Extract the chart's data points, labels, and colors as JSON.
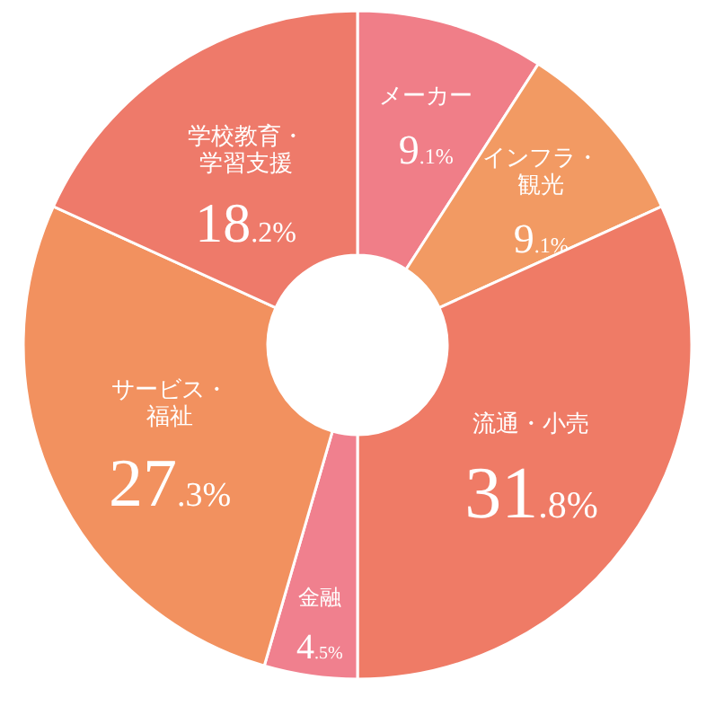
{
  "chart_data": {
    "type": "donut",
    "categories": [
      "メーカー",
      "インフラ・観光",
      "流通・小売",
      "金融",
      "サービス・福祉",
      "学校教育・学習支援"
    ],
    "values": [
      9.1,
      9.1,
      31.8,
      4.5,
      27.3,
      18.2
    ],
    "value_labels": [
      "9.1%",
      "9.1%",
      "31.8%",
      "4.5%",
      "27.3%",
      "18.2%"
    ],
    "colors": [
      "#f07e88",
      "#f29a63",
      "#ef7b66",
      "#f0808e",
      "#f2915f",
      "#ee7a6a"
    ]
  }
}
